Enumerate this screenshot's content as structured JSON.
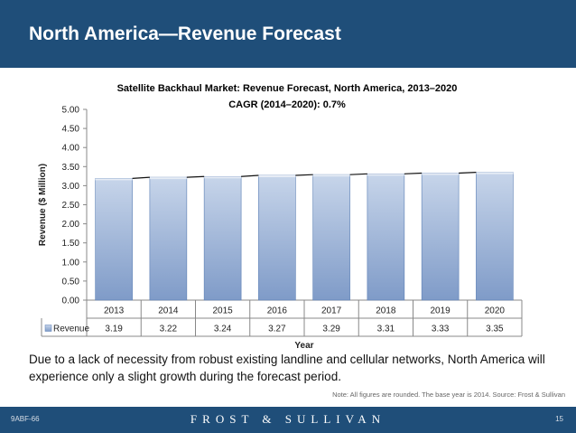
{
  "slide": {
    "title": "North America—Revenue Forecast",
    "body_text": "Due to a lack of necessity from robust existing landline and cellular networks, North America will experience only a slight growth during the forecast period.",
    "note": "Note: All figures are rounded. The base year is 2014. Source: Frost & Sullivan",
    "footer_code": "9ABF-66",
    "footer_brand": "FROST & SULLIVAN",
    "page_number": "15"
  },
  "colors": {
    "header_bg": "#1f4e79",
    "bar_fill_top": "#c7d5ea",
    "bar_fill_bottom": "#7f9bc8",
    "bar_stroke": "#5b7fb5"
  },
  "chart_data": {
    "type": "bar",
    "title": "Satellite Backhaul Market: Revenue Forecast, North America, 2013–2020",
    "subtitle": "CAGR (2014–2020): 0.7%",
    "xlabel": "Year",
    "ylabel": "Revenue ($ Million)",
    "ylim": [
      0,
      5
    ],
    "yticks": [
      "0.00",
      "0.50",
      "1.00",
      "1.50",
      "2.00",
      "2.50",
      "3.00",
      "3.50",
      "4.00",
      "4.50",
      "5.00"
    ],
    "categories": [
      "2013",
      "2014",
      "2015",
      "2016",
      "2017",
      "2018",
      "2019",
      "2020"
    ],
    "series": [
      {
        "name": "Revenue",
        "values": [
          3.19,
          3.22,
          3.24,
          3.27,
          3.29,
          3.31,
          3.33,
          3.35
        ],
        "labels": [
          "3.19",
          "3.22",
          "3.24",
          "3.27",
          "3.29",
          "3.31",
          "3.33",
          "3.35"
        ]
      }
    ],
    "grid": false,
    "data_table": true
  }
}
